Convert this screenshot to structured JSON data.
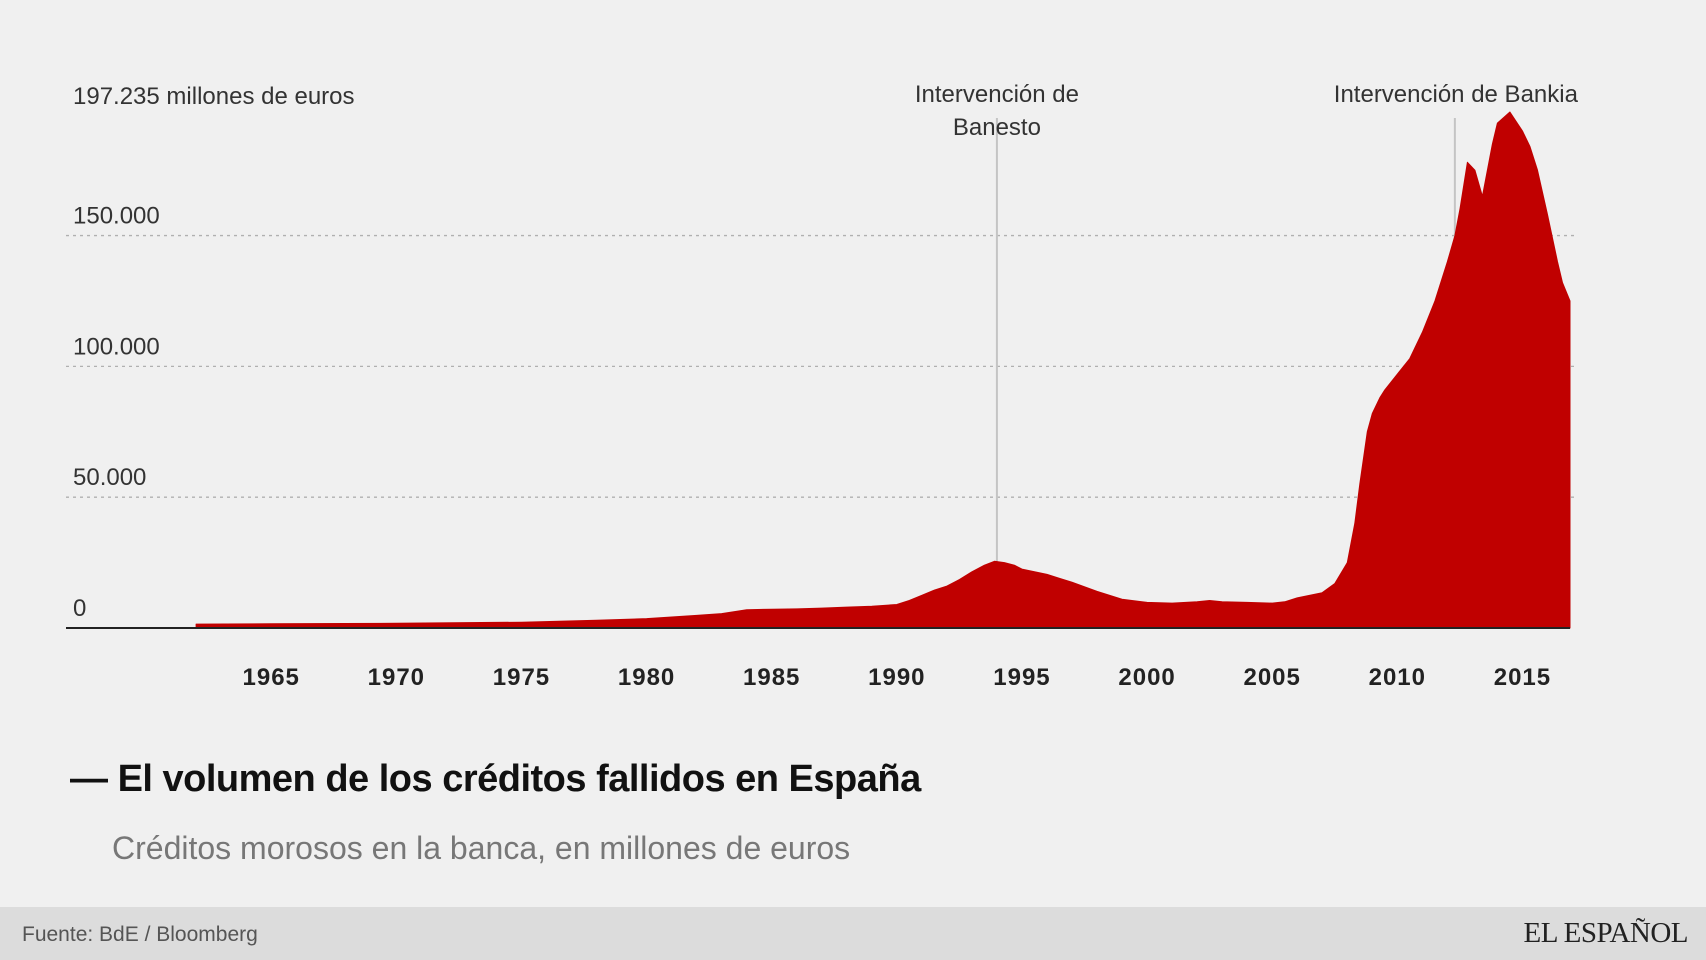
{
  "chart_data": {
    "type": "area",
    "title": "El volumen de los créditos fallidos en España",
    "title_prefix": "—",
    "subtitle": "Créditos morosos en la banca, en millones de euros",
    "max_label": "197.235 millones de euros",
    "y_ticks": [
      {
        "value": 0,
        "label": "0"
      },
      {
        "value": 50000,
        "label": "50.000"
      },
      {
        "value": 100000,
        "label": "100.000"
      },
      {
        "value": 150000,
        "label": "150.000"
      }
    ],
    "x_ticks": [
      {
        "value": 1965,
        "label": "1965"
      },
      {
        "value": 1970,
        "label": "1970"
      },
      {
        "value": 1975,
        "label": "1975"
      },
      {
        "value": 1980,
        "label": "1980"
      },
      {
        "value": 1985,
        "label": "1985"
      },
      {
        "value": 1990,
        "label": "1990"
      },
      {
        "value": 1995,
        "label": "1995"
      },
      {
        "value": 2000,
        "label": "2000"
      },
      {
        "value": 2005,
        "label": "2005"
      },
      {
        "value": 2010,
        "label": "2010"
      },
      {
        "value": 2015,
        "label": "2015"
      }
    ],
    "xlim": [
      1956.8,
      2017.3
    ],
    "ylim": [
      0,
      197235
    ],
    "x": [
      1962.0,
      1965.0,
      1970.0,
      1975.0,
      1978.0,
      1980.0,
      1982.0,
      1983.0,
      1984.0,
      1985.0,
      1986.0,
      1987.0,
      1988.0,
      1989.0,
      1990.0,
      1990.5,
      1991.0,
      1991.5,
      1992.0,
      1992.5,
      1993.0,
      1993.5,
      1993.9,
      1994.3,
      1994.7,
      1995.0,
      1995.5,
      1996.0,
      1996.5,
      1997.0,
      1998.0,
      1999.0,
      2000.0,
      2001.0,
      2002.0,
      2002.5,
      2003.0,
      2004.0,
      2005.0,
      2005.5,
      2006.0,
      2007.0,
      2007.5,
      2008.0,
      2008.3,
      2008.5,
      2008.8,
      2009.0,
      2009.3,
      2009.5,
      2010.0,
      2010.5,
      2011.0,
      2011.5,
      2012.0,
      2012.3,
      2012.5,
      2012.8,
      2013.1,
      2013.4,
      2013.8,
      2014.0,
      2014.5,
      2015.0,
      2015.3,
      2015.6,
      2016.0,
      2016.4,
      2016.6,
      2016.9
    ],
    "values": [
      1500,
      1600,
      1800,
      2200,
      3000,
      3600,
      4800,
      5500,
      7000,
      7200,
      7300,
      7600,
      8000,
      8300,
      9000,
      10500,
      12500,
      14500,
      16000,
      18500,
      21500,
      24000,
      25500,
      25000,
      24000,
      22500,
      21500,
      20500,
      19000,
      17500,
      14000,
      11000,
      9800,
      9500,
      10000,
      10500,
      10000,
      9800,
      9500,
      10000,
      11500,
      13500,
      17000,
      25000,
      40000,
      55000,
      75000,
      82000,
      88000,
      91000,
      97000,
      103000,
      113000,
      125000,
      140000,
      150000,
      160000,
      178000,
      175000,
      165000,
      185000,
      193000,
      197235,
      190000,
      184000,
      175000,
      158000,
      140000,
      132000,
      125000
    ],
    "annotations": [
      {
        "x": 1994.0,
        "lines": [
          "Intervención de",
          "Banesto"
        ]
      },
      {
        "x": 2012.3,
        "lines": [
          "Intervención de Bankia"
        ]
      }
    ],
    "grid": true,
    "fill_color": "#c00000",
    "grid_color": "#b0b0b0",
    "baseline_color": "#222222"
  },
  "source": "Fuente: BdE / Bloomberg",
  "brand": "EL ESPAÑOL"
}
